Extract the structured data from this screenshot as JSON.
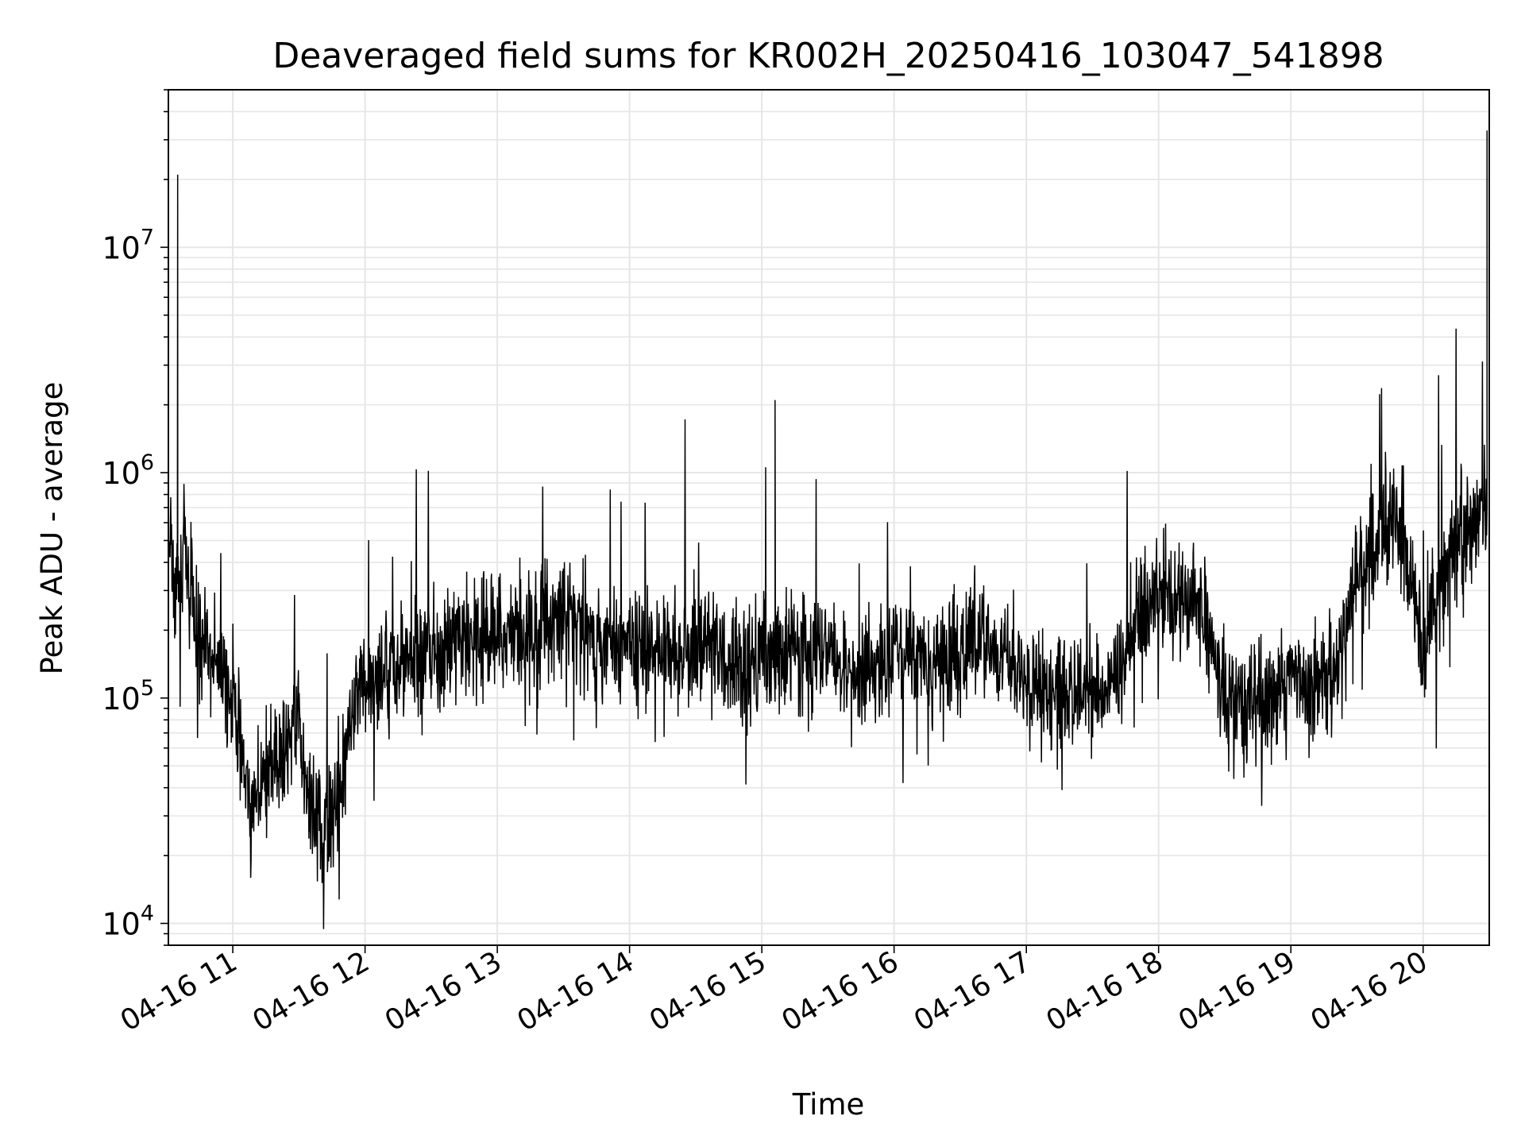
{
  "chart_data": {
    "type": "line",
    "title": "Deaveraged field sums for KR002H_20250416_103047_541898",
    "xlabel": "Time",
    "ylabel": "Peak ADU - average",
    "y_scale": "log",
    "grid": true,
    "legend": "none",
    "line_color": "#000000",
    "xlim": [
      "2025-04-16 10:30:47",
      "2025-04-16 20:30:00"
    ],
    "ylim": [
      8000,
      50000000
    ],
    "x_ticks": [
      "04-16 11",
      "04-16 12",
      "04-16 13",
      "04-16 14",
      "04-16 15",
      "04-16 16",
      "04-16 17",
      "04-16 18",
      "04-16 19",
      "04-16 20"
    ],
    "y_ticks": [
      {
        "base": "10",
        "exp": "4"
      },
      {
        "base": "10",
        "exp": "5"
      },
      {
        "base": "10",
        "exp": "6"
      },
      {
        "base": "10",
        "exp": "7"
      }
    ],
    "series": [
      {
        "x": [
          "2025-04-16 10:31",
          "2025-04-16 10:33",
          "2025-04-16 10:35",
          "2025-04-16 10:36",
          "2025-04-16 10:38",
          "2025-04-16 10:40",
          "2025-04-16 10:43",
          "2025-04-16 10:48",
          "2025-04-16 10:53",
          "2025-04-16 10:58",
          "2025-04-16 11:04",
          "2025-04-16 11:09",
          "2025-04-16 11:13",
          "2025-04-16 11:18",
          "2025-04-16 11:24",
          "2025-04-16 11:30",
          "2025-04-16 11:35",
          "2025-04-16 11:42",
          "2025-04-16 11:50",
          "2025-04-16 11:56",
          "2025-04-16 12:05",
          "2025-04-16 12:15",
          "2025-04-16 12:25",
          "2025-04-16 12:35",
          "2025-04-16 12:45",
          "2025-04-16 12:55",
          "2025-04-16 13:05",
          "2025-04-16 13:15",
          "2025-04-16 13:20",
          "2025-04-16 13:30",
          "2025-04-16 13:40",
          "2025-04-16 13:50",
          "2025-04-16 14:00",
          "2025-04-16 14:15",
          "2025-04-16 14:30",
          "2025-04-16 14:45",
          "2025-04-16 15:00",
          "2025-04-16 15:06",
          "2025-04-16 15:15",
          "2025-04-16 15:30",
          "2025-04-16 15:45",
          "2025-04-16 16:00",
          "2025-04-16 16:15",
          "2025-04-16 16:25",
          "2025-04-16 16:40",
          "2025-04-16 17:00",
          "2025-04-16 17:15",
          "2025-04-16 17:30",
          "2025-04-16 17:40",
          "2025-04-16 17:50",
          "2025-04-16 18:00",
          "2025-04-16 18:10",
          "2025-04-16 18:20",
          "2025-04-16 18:30",
          "2025-04-16 18:40",
          "2025-04-16 18:50",
          "2025-04-16 19:00",
          "2025-04-16 19:10",
          "2025-04-16 19:20",
          "2025-04-16 19:30",
          "2025-04-16 19:40",
          "2025-04-16 19:50",
          "2025-04-16 20:00",
          "2025-04-16 20:07",
          "2025-04-16 20:15",
          "2025-04-16 20:22",
          "2025-04-16 20:27",
          "2025-04-16 20:29"
        ],
        "values": [
          500000,
          350000,
          21000000,
          300000,
          600000,
          250000,
          200000,
          180000,
          150000,
          120000,
          60000,
          30000,
          45000,
          50000,
          60000,
          80000,
          30000,
          25000,
          45000,
          120000,
          130000,
          140000,
          150000,
          160000,
          170000,
          180000,
          200000,
          180000,
          220000,
          250000,
          200000,
          180000,
          170000,
          160000,
          170000,
          150000,
          150000,
          2100000,
          160000,
          150000,
          140000,
          150000,
          160000,
          150000,
          180000,
          120000,
          110000,
          100000,
          110000,
          230000,
          300000,
          280000,
          250000,
          100000,
          90000,
          110000,
          120000,
          110000,
          130000,
          350000,
          500000,
          600000,
          150000,
          300000,
          500000,
          600000,
          700000,
          33000000
        ]
      }
    ]
  }
}
